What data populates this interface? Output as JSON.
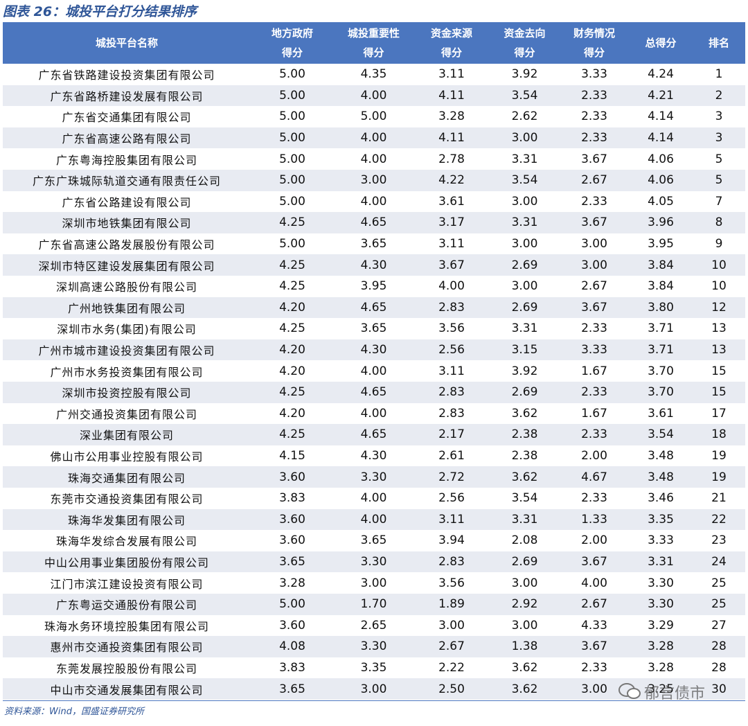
{
  "title": "图表 26：城投平台打分结果排序",
  "table": {
    "header": [
      [
        "城投平台名称"
      ],
      [
        "地方政府",
        "得分"
      ],
      [
        "城投重要性",
        "得分"
      ],
      [
        "资金来源",
        "得分"
      ],
      [
        "资金去向",
        "得分"
      ],
      [
        "财务情况",
        "得分"
      ],
      [
        "总得分"
      ],
      [
        "排名"
      ]
    ],
    "rows": [
      [
        "广东省铁路建设投资集团有限公司",
        "5.00",
        "4.35",
        "3.11",
        "3.92",
        "3.33",
        "4.24",
        "1"
      ],
      [
        "广东省路桥建设发展有限公司",
        "5.00",
        "4.00",
        "4.11",
        "3.54",
        "2.33",
        "4.21",
        "2"
      ],
      [
        "广东省交通集团有限公司",
        "5.00",
        "5.00",
        "3.28",
        "2.62",
        "2.33",
        "4.14",
        "3"
      ],
      [
        "广东省高速公路有限公司",
        "5.00",
        "4.00",
        "4.11",
        "3.00",
        "2.33",
        "4.14",
        "3"
      ],
      [
        "广东粤海控股集团有限公司",
        "5.00",
        "4.00",
        "2.78",
        "3.31",
        "3.67",
        "4.06",
        "5"
      ],
      [
        "广东广珠城际轨道交通有限责任公司",
        "5.00",
        "3.00",
        "4.22",
        "3.54",
        "2.67",
        "4.06",
        "5"
      ],
      [
        "广东省公路建设有限公司",
        "5.00",
        "4.00",
        "3.61",
        "3.00",
        "2.33",
        "4.05",
        "7"
      ],
      [
        "深圳市地铁集团有限公司",
        "4.25",
        "4.65",
        "3.17",
        "3.31",
        "3.67",
        "3.96",
        "8"
      ],
      [
        "广东省高速公路发展股份有限公司",
        "5.00",
        "3.65",
        "3.11",
        "3.00",
        "3.00",
        "3.95",
        "9"
      ],
      [
        "深圳市特区建设发展集团有限公司",
        "4.25",
        "4.30",
        "3.67",
        "2.69",
        "3.00",
        "3.84",
        "10"
      ],
      [
        "深圳高速公路股份有限公司",
        "4.25",
        "3.95",
        "4.00",
        "3.00",
        "2.67",
        "3.84",
        "10"
      ],
      [
        "广州地铁集团有限公司",
        "4.20",
        "4.65",
        "2.83",
        "2.69",
        "3.67",
        "3.80",
        "12"
      ],
      [
        "深圳市水务(集团)有限公司",
        "4.25",
        "3.65",
        "3.56",
        "3.31",
        "2.33",
        "3.71",
        "13"
      ],
      [
        "广州市城市建设投资集团有限公司",
        "4.20",
        "4.30",
        "2.56",
        "3.15",
        "3.33",
        "3.71",
        "13"
      ],
      [
        "广州市水务投资集团有限公司",
        "4.20",
        "4.00",
        "3.11",
        "3.92",
        "1.67",
        "3.70",
        "15"
      ],
      [
        "深圳市投资控股有限公司",
        "4.25",
        "4.65",
        "2.83",
        "2.69",
        "2.33",
        "3.70",
        "15"
      ],
      [
        "广州交通投资集团有限公司",
        "4.20",
        "4.00",
        "2.83",
        "3.62",
        "1.67",
        "3.61",
        "17"
      ],
      [
        "深业集团有限公司",
        "4.25",
        "4.65",
        "2.17",
        "2.38",
        "2.33",
        "3.54",
        "18"
      ],
      [
        "佛山市公用事业控股有限公司",
        "4.15",
        "4.30",
        "2.61",
        "2.38",
        "2.00",
        "3.48",
        "19"
      ],
      [
        "珠海交通集团有限公司",
        "3.60",
        "3.30",
        "2.72",
        "3.62",
        "4.67",
        "3.48",
        "19"
      ],
      [
        "东莞市交通投资集团有限公司",
        "3.83",
        "4.00",
        "2.56",
        "3.54",
        "2.33",
        "3.46",
        "21"
      ],
      [
        "珠海华发集团有限公司",
        "3.60",
        "4.00",
        "3.11",
        "3.31",
        "1.33",
        "3.35",
        "22"
      ],
      [
        "珠海华发综合发展有限公司",
        "3.60",
        "3.65",
        "3.94",
        "2.08",
        "2.00",
        "3.33",
        "23"
      ],
      [
        "中山公用事业集团股份有限公司",
        "3.65",
        "3.30",
        "2.83",
        "2.69",
        "3.67",
        "3.31",
        "24"
      ],
      [
        "江门市滨江建设投资有限公司",
        "3.28",
        "3.00",
        "3.56",
        "3.00",
        "4.00",
        "3.30",
        "25"
      ],
      [
        "广东粤运交通股份有限公司",
        "5.00",
        "1.70",
        "1.89",
        "2.92",
        "2.67",
        "3.30",
        "25"
      ],
      [
        "珠海水务环境控股集团有限公司",
        "3.60",
        "2.65",
        "3.00",
        "3.00",
        "4.33",
        "3.29",
        "27"
      ],
      [
        "惠州市交通投资集团有限公司",
        "4.08",
        "3.30",
        "2.67",
        "1.38",
        "3.67",
        "3.28",
        "28"
      ],
      [
        "东莞发展控股股份有限公司",
        "3.83",
        "3.35",
        "2.22",
        "3.62",
        "2.33",
        "3.28",
        "28"
      ],
      [
        "中山市交通发展集团有限公司",
        "3.65",
        "3.00",
        "2.50",
        "3.62",
        "3.00",
        "3.25",
        "30"
      ]
    ]
  },
  "source": "资料来源：Wind，国盛证券研究所",
  "watermark": "郁言债市"
}
